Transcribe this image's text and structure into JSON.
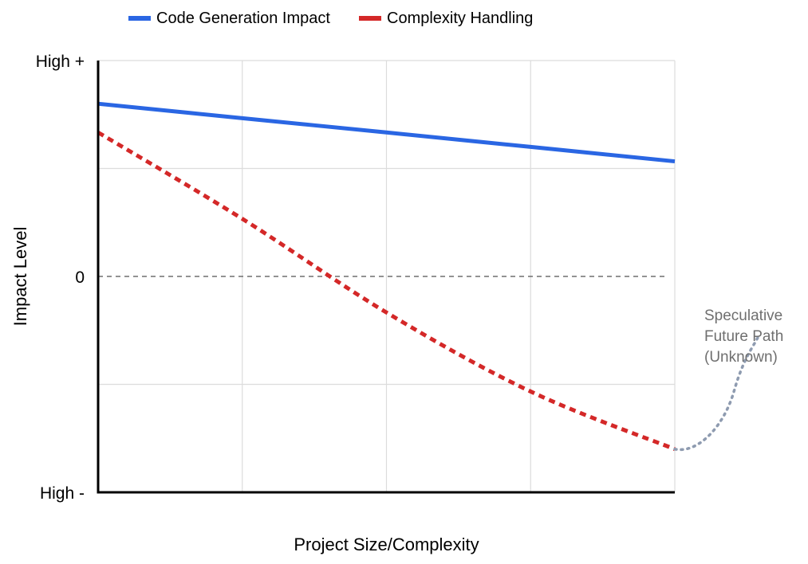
{
  "chart_data": {
    "type": "line",
    "title": "",
    "xlabel": "Project Size/Complexity",
    "ylabel": "Impact Level",
    "x": [
      0,
      1,
      2,
      3,
      4
    ],
    "xlim": [
      0,
      4
    ],
    "ylim": [
      -1,
      1
    ],
    "yticks": [
      {
        "value": 1,
        "label": "High +"
      },
      {
        "value": 0,
        "label": "0"
      },
      {
        "value": -1,
        "label": "High -"
      }
    ],
    "grid": true,
    "legend_position": "top",
    "series": [
      {
        "name": "Code Generation Impact",
        "color": "#2a66e3",
        "style": "solid",
        "values": [
          0.8,
          0.733,
          0.667,
          0.6,
          0.533
        ]
      },
      {
        "name": "Complexity Handling",
        "color": "#d42828",
        "style": "dotted",
        "values": [
          0.667,
          0.267,
          -0.167,
          -0.533,
          -0.8
        ]
      }
    ],
    "annotations": [
      {
        "text_lines": [
          "Speculative",
          "Future Path",
          "(Unknown)"
        ],
        "color": "#8e9bb0",
        "style": "dotted"
      }
    ]
  }
}
